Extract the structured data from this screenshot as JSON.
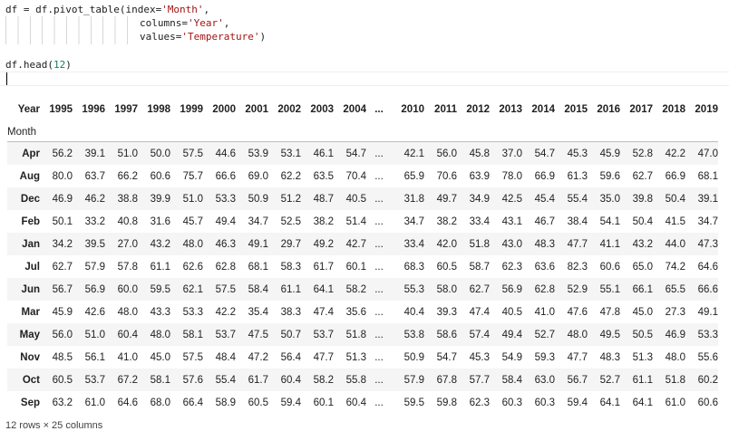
{
  "code": {
    "line1_prefix": "df = df.pivot_table(index=",
    "line1_str": "'Month'",
    "line1_suffix": ",",
    "line2_prefix": "columns=",
    "line2_str": "'Year'",
    "line2_suffix": ",",
    "line3_prefix": "values=",
    "line3_str": "'Temperature'",
    "line3_suffix": ")",
    "line5_prefix": "df.head(",
    "line5_num": "12",
    "line5_suffix": ")"
  },
  "table": {
    "columns_label": "Year",
    "index_label": "Month",
    "ellipsis": "...",
    "years_left": [
      "1995",
      "1996",
      "1997",
      "1998",
      "1999",
      "2000",
      "2001",
      "2002",
      "2003",
      "2004"
    ],
    "years_right": [
      "2010",
      "2011",
      "2012",
      "2013",
      "2014",
      "2015",
      "2016",
      "2017",
      "2018",
      "2019"
    ],
    "rows": [
      {
        "month": "Apr",
        "left": [
          "56.2",
          "39.1",
          "51.0",
          "50.0",
          "57.5",
          "44.6",
          "53.9",
          "53.1",
          "46.1",
          "54.7"
        ],
        "right": [
          "42.1",
          "56.0",
          "45.8",
          "37.0",
          "54.7",
          "45.3",
          "45.9",
          "52.8",
          "42.2",
          "47.0"
        ]
      },
      {
        "month": "Aug",
        "left": [
          "80.0",
          "63.7",
          "66.2",
          "60.6",
          "75.7",
          "66.6",
          "69.0",
          "62.2",
          "63.5",
          "70.4"
        ],
        "right": [
          "65.9",
          "70.6",
          "63.9",
          "78.0",
          "66.9",
          "61.3",
          "59.6",
          "62.7",
          "66.9",
          "68.1"
        ]
      },
      {
        "month": "Dec",
        "left": [
          "46.9",
          "46.2",
          "38.8",
          "39.9",
          "51.0",
          "53.3",
          "50.9",
          "51.2",
          "48.7",
          "40.5"
        ],
        "right": [
          "31.8",
          "49.7",
          "34.9",
          "42.5",
          "45.4",
          "55.4",
          "35.0",
          "39.8",
          "50.4",
          "39.1"
        ]
      },
      {
        "month": "Feb",
        "left": [
          "50.1",
          "33.2",
          "40.8",
          "31.6",
          "45.7",
          "49.4",
          "34.7",
          "52.5",
          "38.2",
          "51.4"
        ],
        "right": [
          "34.7",
          "38.2",
          "33.4",
          "43.1",
          "46.7",
          "38.4",
          "54.1",
          "50.4",
          "41.5",
          "34.7"
        ]
      },
      {
        "month": "Jan",
        "left": [
          "34.2",
          "39.5",
          "27.0",
          "43.2",
          "48.0",
          "46.3",
          "49.1",
          "29.7",
          "49.2",
          "42.7"
        ],
        "right": [
          "33.4",
          "42.0",
          "51.8",
          "43.0",
          "48.3",
          "47.7",
          "41.1",
          "43.2",
          "44.0",
          "47.3"
        ]
      },
      {
        "month": "Jul",
        "left": [
          "62.7",
          "57.9",
          "57.8",
          "61.1",
          "62.6",
          "62.8",
          "68.1",
          "58.3",
          "61.7",
          "60.1"
        ],
        "right": [
          "68.3",
          "60.5",
          "58.7",
          "62.3",
          "63.6",
          "82.3",
          "60.6",
          "65.0",
          "74.2",
          "64.6"
        ]
      },
      {
        "month": "Jun",
        "left": [
          "56.7",
          "56.9",
          "60.0",
          "59.5",
          "62.1",
          "57.5",
          "58.4",
          "61.1",
          "64.1",
          "58.2"
        ],
        "right": [
          "55.3",
          "58.0",
          "62.7",
          "56.9",
          "62.8",
          "52.9",
          "55.1",
          "66.1",
          "65.5",
          "66.6"
        ]
      },
      {
        "month": "Mar",
        "left": [
          "45.9",
          "42.6",
          "48.0",
          "43.3",
          "53.3",
          "42.2",
          "35.4",
          "38.3",
          "47.4",
          "35.6"
        ],
        "right": [
          "40.4",
          "39.3",
          "47.4",
          "40.5",
          "41.0",
          "47.6",
          "47.8",
          "45.0",
          "27.3",
          "49.1"
        ]
      },
      {
        "month": "May",
        "left": [
          "56.0",
          "51.0",
          "60.4",
          "48.0",
          "58.1",
          "53.7",
          "47.5",
          "50.7",
          "53.7",
          "51.8"
        ],
        "right": [
          "53.8",
          "58.6",
          "57.4",
          "49.4",
          "52.7",
          "48.0",
          "49.5",
          "50.5",
          "46.9",
          "53.3"
        ]
      },
      {
        "month": "Nov",
        "left": [
          "48.5",
          "56.1",
          "41.0",
          "45.0",
          "57.5",
          "48.4",
          "47.2",
          "56.4",
          "47.7",
          "51.3"
        ],
        "right": [
          "50.9",
          "54.7",
          "45.3",
          "54.9",
          "59.3",
          "47.7",
          "48.3",
          "51.3",
          "48.0",
          "55.6"
        ]
      },
      {
        "month": "Oct",
        "left": [
          "60.5",
          "53.7",
          "67.2",
          "58.1",
          "57.6",
          "55.4",
          "61.7",
          "60.4",
          "58.2",
          "55.8"
        ],
        "right": [
          "57.9",
          "67.8",
          "57.7",
          "58.4",
          "63.0",
          "56.7",
          "52.7",
          "61.1",
          "51.8",
          "60.2"
        ]
      },
      {
        "month": "Sep",
        "left": [
          "63.2",
          "61.0",
          "64.6",
          "68.0",
          "66.4",
          "58.9",
          "60.5",
          "59.4",
          "60.1",
          "60.4"
        ],
        "right": [
          "59.5",
          "59.8",
          "62.3",
          "60.3",
          "60.3",
          "59.4",
          "64.1",
          "64.1",
          "61.0",
          "60.6"
        ]
      }
    ]
  },
  "footer": "12 rows × 25 columns"
}
